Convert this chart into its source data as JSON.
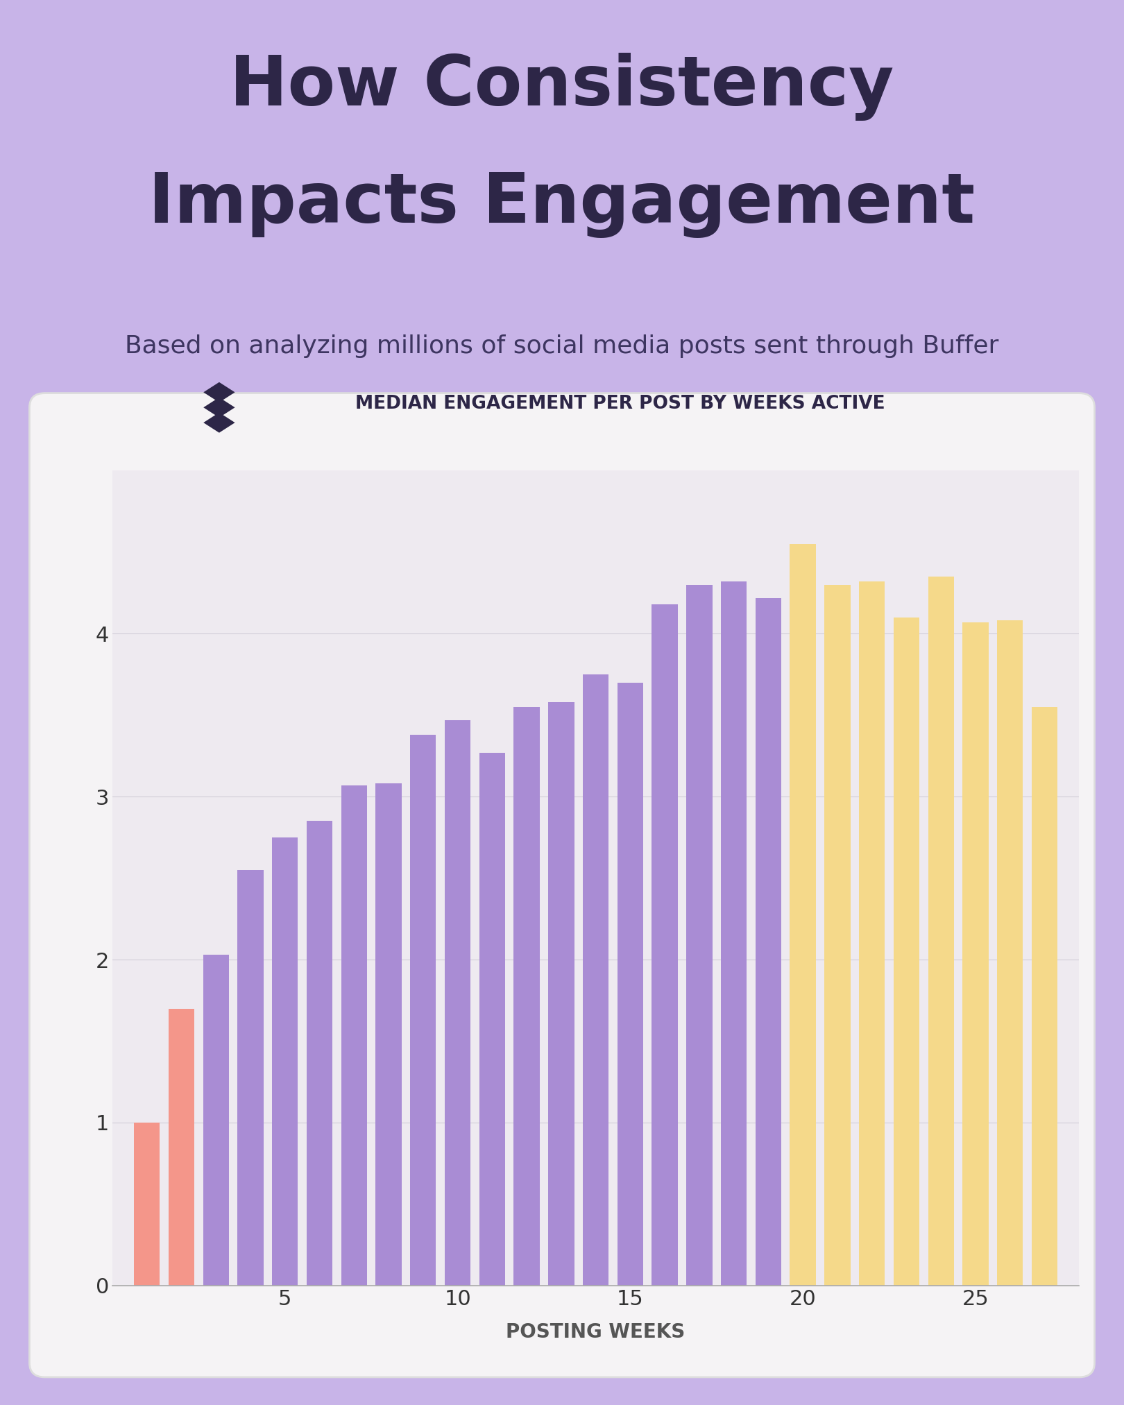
{
  "title_line1": "How Consistency",
  "title_line2": "Impacts Engagement",
  "subtitle": "Based on analyzing millions of social media posts sent through Buffer",
  "chart_title": "MEDIAN ENGAGEMENT PER POST BY WEEKS ACTIVE",
  "xlabel": "POSTING WEEKS",
  "background_color": "#c8b4e8",
  "card_color": "#f5f3f5",
  "chart_bg_color": "#eeeaf0",
  "title_color": "#2d2647",
  "subtitle_color": "#3d3560",
  "bar_values": [
    1.0,
    1.7,
    2.03,
    2.55,
    2.75,
    2.85,
    3.07,
    3.08,
    3.38,
    3.47,
    3.27,
    3.55,
    3.58,
    3.75,
    3.7,
    4.18,
    4.3,
    4.32,
    4.22,
    4.55,
    4.3,
    4.32,
    4.1,
    4.35,
    4.07,
    4.08,
    3.55
  ],
  "bar_colors_list": [
    "#f4968a",
    "#f4968a",
    "#a98cd4",
    "#a98cd4",
    "#a98cd4",
    "#a98cd4",
    "#a98cd4",
    "#a98cd4",
    "#a98cd4",
    "#a98cd4",
    "#a98cd4",
    "#a98cd4",
    "#a98cd4",
    "#a98cd4",
    "#a98cd4",
    "#a98cd4",
    "#a98cd4",
    "#a98cd4",
    "#a98cd4",
    "#f5d98a",
    "#f5d98a",
    "#f5d98a",
    "#f5d98a",
    "#f5d98a",
    "#f5d98a",
    "#f5d98a",
    "#f5d98a"
  ],
  "weeks": [
    1,
    2,
    3,
    4,
    5,
    6,
    7,
    8,
    9,
    10,
    11,
    12,
    13,
    14,
    15,
    16,
    17,
    18,
    19,
    20,
    21,
    22,
    23,
    24,
    25,
    26,
    27
  ],
  "ylim": [
    0,
    5.0
  ],
  "yticks": [
    0,
    1,
    2,
    3,
    4
  ],
  "xticks": [
    5,
    10,
    15,
    20,
    25
  ]
}
